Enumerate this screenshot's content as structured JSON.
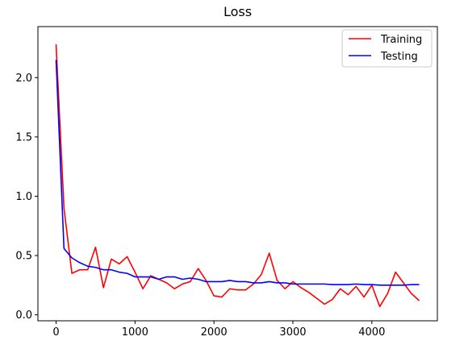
{
  "chart_data": {
    "type": "line",
    "title": "Loss",
    "xlabel": "",
    "ylabel": "",
    "xlim": [
      -230,
      4830
    ],
    "ylim": [
      -0.05,
      2.43
    ],
    "xticks": [
      0,
      1000,
      2000,
      3000,
      4000
    ],
    "yticks": [
      0.0,
      0.5,
      1.0,
      1.5,
      2.0
    ],
    "grid": false,
    "legend_position": "top-right",
    "series": [
      {
        "name": "Training",
        "color": "#ff0000",
        "x": [
          0,
          100,
          200,
          300,
          400,
          500,
          600,
          700,
          800,
          900,
          1000,
          1100,
          1200,
          1300,
          1400,
          1500,
          1600,
          1700,
          1800,
          1900,
          2000,
          2100,
          2200,
          2300,
          2400,
          2500,
          2600,
          2700,
          2800,
          2900,
          3000,
          3100,
          3200,
          3300,
          3400,
          3500,
          3600,
          3700,
          3800,
          3900,
          4000,
          4100,
          4200,
          4300,
          4400,
          4500,
          4600
        ],
        "values": [
          2.28,
          0.9,
          0.35,
          0.38,
          0.38,
          0.57,
          0.23,
          0.47,
          0.43,
          0.49,
          0.36,
          0.22,
          0.33,
          0.3,
          0.27,
          0.22,
          0.26,
          0.28,
          0.39,
          0.29,
          0.16,
          0.15,
          0.22,
          0.21,
          0.21,
          0.26,
          0.34,
          0.52,
          0.29,
          0.22,
          0.28,
          0.23,
          0.19,
          0.14,
          0.09,
          0.13,
          0.22,
          0.17,
          0.24,
          0.15,
          0.25,
          0.07,
          0.18,
          0.36,
          0.27,
          0.18,
          0.12
        ]
      },
      {
        "name": "Testing",
        "color": "#0000ff",
        "x": [
          0,
          100,
          200,
          300,
          400,
          500,
          600,
          700,
          800,
          900,
          1000,
          1100,
          1200,
          1300,
          1400,
          1500,
          1600,
          1700,
          1800,
          1900,
          2000,
          2100,
          2200,
          2300,
          2400,
          2500,
          2600,
          2700,
          2800,
          2900,
          3000,
          3100,
          3200,
          3300,
          3400,
          3500,
          3600,
          3700,
          3800,
          3900,
          4000,
          4100,
          4200,
          4300,
          4400,
          4500,
          4600
        ],
        "values": [
          2.15,
          0.56,
          0.48,
          0.44,
          0.41,
          0.4,
          0.38,
          0.38,
          0.36,
          0.35,
          0.32,
          0.32,
          0.32,
          0.3,
          0.32,
          0.32,
          0.3,
          0.31,
          0.3,
          0.28,
          0.28,
          0.28,
          0.29,
          0.28,
          0.28,
          0.27,
          0.27,
          0.28,
          0.27,
          0.27,
          0.26,
          0.26,
          0.26,
          0.26,
          0.26,
          0.255,
          0.255,
          0.255,
          0.26,
          0.255,
          0.255,
          0.25,
          0.25,
          0.25,
          0.25,
          0.255,
          0.255
        ]
      }
    ]
  }
}
